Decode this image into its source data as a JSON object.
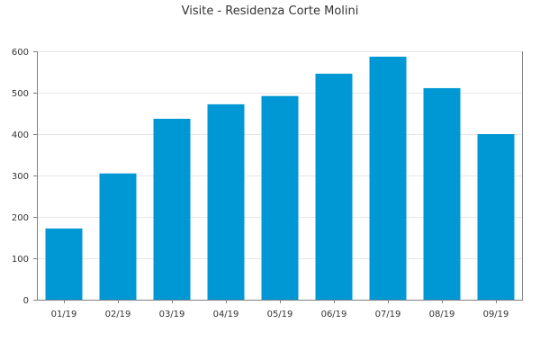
{
  "chart_data": {
    "type": "bar",
    "title": "Visite - Residenza Corte Molini",
    "xlabel": "",
    "ylabel": "",
    "categories": [
      "01/19",
      "02/19",
      "03/19",
      "04/19",
      "05/19",
      "06/19",
      "07/19",
      "08/19",
      "09/19"
    ],
    "values": [
      172,
      305,
      437,
      472,
      492,
      546,
      587,
      511,
      400
    ],
    "ylim": [
      0,
      600
    ],
    "yticks": [
      0,
      100,
      200,
      300,
      400,
      500,
      600
    ],
    "grid": true,
    "bar_color": "#0098d4",
    "legend": "none"
  }
}
